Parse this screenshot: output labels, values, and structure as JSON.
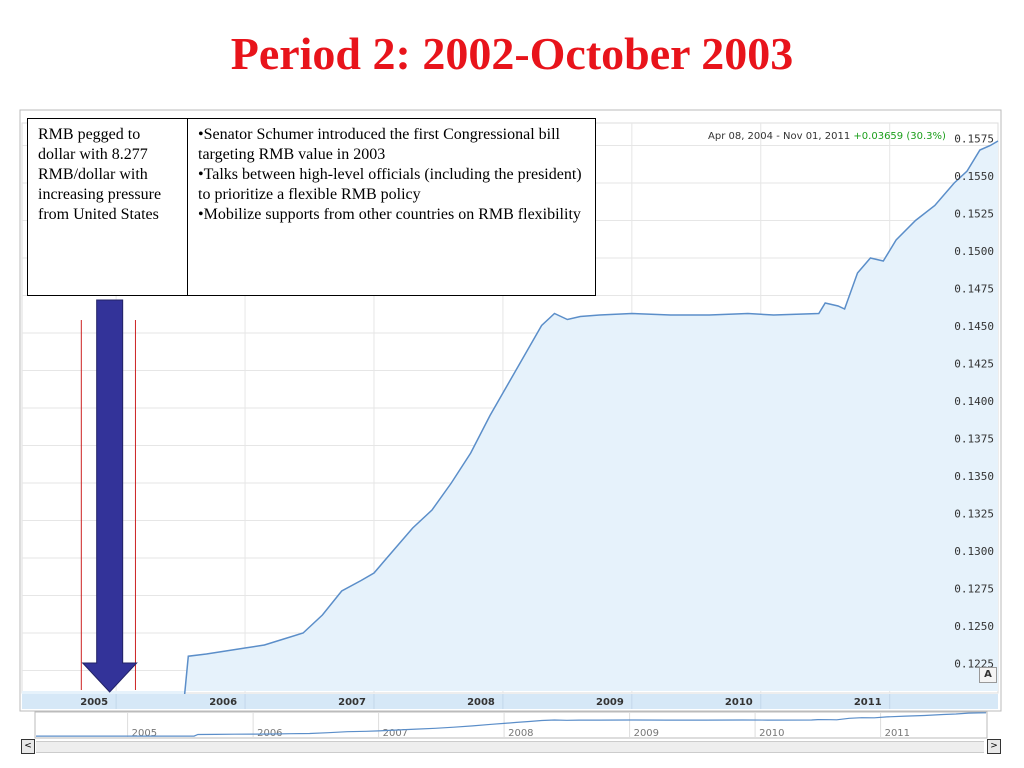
{
  "slide": {
    "title": "Period 2: 2002-October 2003"
  },
  "table": {
    "left_text": "RMB pegged to dollar with 8.277 RMB/dollar with increasing pressure from United States",
    "bullets": [
      "•Senator Schumer introduced the first Congressional bill targeting RMB value in 2003",
      "•Talks between high-level officials (including the president) to prioritize a flexible RMB policy",
      "•Mobilize supports from other countries on RMB flexibility"
    ]
  },
  "chart_header": {
    "start_date": "Apr 08, 2004",
    "separator": "-",
    "end_date": "Nov 01, 2011",
    "change": "+0.03659 (30.3%)"
  },
  "controls": {
    "a_button": "A",
    "scroll_left": "<",
    "scroll_right": ">"
  },
  "colors": {
    "title": "#e8141b",
    "line": "#5b8ec9",
    "fill": "#e6f2fb",
    "arrow": "#333399",
    "marker_lines": "#cc2222",
    "change": "#1b9e1b"
  },
  "chart_data": {
    "type": "area",
    "title": "",
    "xlabel": "",
    "ylabel": "",
    "x_ticks": [
      "2005",
      "2006",
      "2007",
      "2008",
      "2009",
      "2010",
      "2011"
    ],
    "y_ticks": [
      "0.1225",
      "0.1250",
      "0.1275",
      "0.1300",
      "0.1325",
      "0.1350",
      "0.1375",
      "0.1400",
      "0.1425",
      "0.1450",
      "0.1475",
      "0.1500",
      "0.1525",
      "0.1550",
      "0.1575"
    ],
    "xlim": [
      2004.27,
      2011.84
    ],
    "ylim": [
      0.121,
      0.159
    ],
    "navigator_ticks": [
      "2005",
      "2006",
      "2007",
      "2008",
      "2009",
      "2010",
      "2011"
    ],
    "series": [
      {
        "points": [
          [
            2004.27,
            0.12082
          ],
          [
            2004.5,
            0.12082
          ],
          [
            2004.75,
            0.12082
          ],
          [
            2005.0,
            0.12082
          ],
          [
            2005.53,
            0.12082
          ],
          [
            2005.56,
            0.12345
          ],
          [
            2005.7,
            0.1236
          ],
          [
            2005.85,
            0.1238
          ],
          [
            2006.0,
            0.124
          ],
          [
            2006.15,
            0.1242
          ],
          [
            2006.3,
            0.1246
          ],
          [
            2006.45,
            0.125
          ],
          [
            2006.6,
            0.1262
          ],
          [
            2006.75,
            0.1278
          ],
          [
            2006.9,
            0.1285
          ],
          [
            2007.0,
            0.129
          ],
          [
            2007.15,
            0.1305
          ],
          [
            2007.3,
            0.132
          ],
          [
            2007.45,
            0.1332
          ],
          [
            2007.6,
            0.135
          ],
          [
            2007.75,
            0.137
          ],
          [
            2007.9,
            0.1395
          ],
          [
            2008.0,
            0.141
          ],
          [
            2008.1,
            0.1425
          ],
          [
            2008.2,
            0.144
          ],
          [
            2008.3,
            0.1455
          ],
          [
            2008.4,
            0.1463
          ],
          [
            2008.5,
            0.1459
          ],
          [
            2008.6,
            0.1461
          ],
          [
            2008.75,
            0.1462
          ],
          [
            2009.0,
            0.1463
          ],
          [
            2009.3,
            0.1462
          ],
          [
            2009.6,
            0.1462
          ],
          [
            2009.9,
            0.1463
          ],
          [
            2010.1,
            0.1462
          ],
          [
            2010.45,
            0.1463
          ],
          [
            2010.5,
            0.147
          ],
          [
            2010.6,
            0.1468
          ],
          [
            2010.65,
            0.1466
          ],
          [
            2010.75,
            0.149
          ],
          [
            2010.85,
            0.15
          ],
          [
            2010.95,
            0.1498
          ],
          [
            2011.05,
            0.1512
          ],
          [
            2011.2,
            0.1525
          ],
          [
            2011.35,
            0.1535
          ],
          [
            2011.5,
            0.155
          ],
          [
            2011.6,
            0.1558
          ],
          [
            2011.7,
            0.1572
          ],
          [
            2011.78,
            0.1575
          ],
          [
            2011.84,
            0.1578
          ]
        ]
      }
    ],
    "annotation": {
      "arrow_x": 2004.95,
      "marker_x": [
        2004.73,
        2005.15
      ]
    },
    "grid": true,
    "legend": "none"
  }
}
